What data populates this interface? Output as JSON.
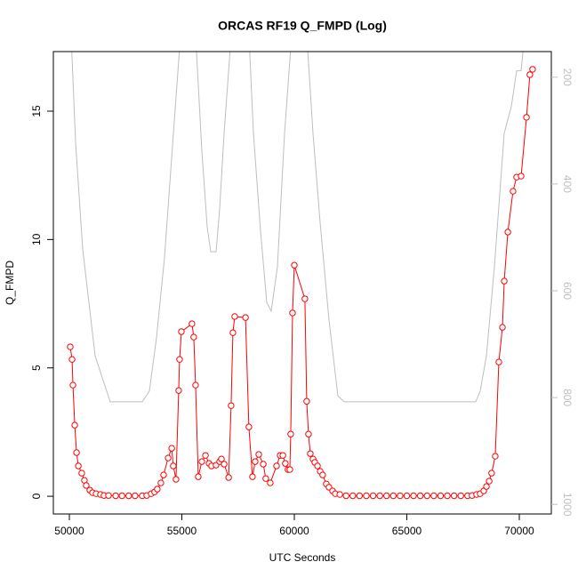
{
  "chart_data": {
    "type": "line",
    "title": "ORCAS RF19 Q_FMPD (Log)",
    "xlabel": "UTC Seconds",
    "ylabel": "Q_FMPD",
    "xlim": [
      49289,
      71423
    ],
    "xticks": [
      50000,
      55000,
      60000,
      65000,
      70000
    ],
    "ylim": [
      -0.69,
      17.32
    ],
    "yticks": [
      0,
      5,
      10,
      15
    ],
    "y2lim": [
      1018,
      152
    ],
    "y2ticks": [
      200,
      400,
      600,
      800,
      1000
    ],
    "grid": false,
    "series": [
      {
        "color": "#ff0000",
        "marker": "circle",
        "axis": "y",
        "x": [
          50040,
          50120,
          50160,
          50240,
          50320,
          50400,
          50550,
          50670,
          50750,
          50910,
          51030,
          51190,
          51380,
          51540,
          51740,
          52060,
          52340,
          52640,
          52920,
          53240,
          53440,
          53640,
          53790,
          53910,
          54070,
          54190,
          54390,
          54550,
          54620,
          54740,
          54860,
          54900,
          54980,
          55450,
          55530,
          55610,
          55730,
          55890,
          56050,
          56210,
          56320,
          56520,
          56680,
          56760,
          56880,
          57080,
          57190,
          57270,
          57350,
          57830,
          57980,
          58140,
          58260,
          58420,
          58620,
          58730,
          58930,
          59210,
          59370,
          59490,
          59600,
          59720,
          59800,
          59840,
          59920,
          60000,
          60470,
          60550,
          60630,
          60710,
          60830,
          60910,
          61030,
          61150,
          61260,
          61420,
          61540,
          61700,
          61820,
          62020,
          62300,
          62600,
          62900,
          63200,
          63500,
          63800,
          64100,
          64400,
          64700,
          65000,
          65300,
          65600,
          65900,
          66200,
          66500,
          66800,
          67100,
          67400,
          67700,
          67900,
          68100,
          68260,
          68420,
          68540,
          68660,
          68770,
          68930,
          69090,
          69250,
          69330,
          69490,
          69720,
          69880,
          70080,
          70320,
          70470,
          70590
        ],
        "values": [
          5.82,
          5.33,
          4.33,
          2.77,
          1.7,
          1.18,
          0.9,
          0.62,
          0.42,
          0.24,
          0.14,
          0.1,
          0.07,
          0.03,
          0.03,
          0.02,
          0.02,
          0.02,
          0.02,
          0.02,
          0.03,
          0.1,
          0.17,
          0.28,
          0.52,
          0.83,
          1.49,
          1.87,
          1.18,
          0.66,
          4.12,
          5.33,
          6.41,
          6.72,
          6.2,
          4.33,
          0.76,
          1.35,
          1.59,
          1.28,
          1.18,
          1.21,
          1.35,
          1.45,
          1.25,
          0.73,
          3.53,
          6.37,
          7.0,
          6.96,
          2.7,
          0.76,
          1.35,
          1.63,
          1.25,
          0.69,
          0.52,
          1.18,
          1.59,
          1.59,
          1.28,
          1.04,
          1.04,
          2.42,
          7.14,
          9.0,
          7.69,
          3.7,
          2.42,
          1.66,
          1.45,
          1.32,
          1.18,
          0.97,
          0.83,
          0.48,
          0.35,
          0.21,
          0.1,
          0.07,
          0.02,
          0.02,
          0.02,
          0.02,
          0.02,
          0.02,
          0.02,
          0.02,
          0.02,
          0.02,
          0.02,
          0.02,
          0.02,
          0.02,
          0.02,
          0.02,
          0.02,
          0.02,
          0.02,
          0.03,
          0.07,
          0.1,
          0.21,
          0.38,
          0.59,
          0.9,
          1.56,
          5.23,
          6.58,
          8.38,
          10.29,
          11.88,
          12.43,
          12.47,
          14.76,
          16.42,
          16.63
        ]
      },
      {
        "color": "#bebebe",
        "marker": "none",
        "axis": "y2",
        "x": [
          50079,
          50277,
          50593,
          51146,
          51660,
          51818,
          53241,
          53557,
          53874,
          54229,
          54625,
          54941,
          55613,
          55889,
          56126,
          56285,
          56522,
          56680,
          56877,
          57194,
          57984,
          58182,
          58498,
          58775,
          58972,
          59249,
          59565,
          59881,
          60553,
          60830,
          61146,
          61542,
          61937,
          62213,
          68063,
          68261,
          68538,
          68893,
          69328,
          69644,
          69881,
          70079,
          70237
        ],
        "values": [
          122,
          322,
          522,
          722,
          788,
          808,
          808,
          788,
          688,
          538,
          305,
          122,
          122,
          338,
          480,
          527,
          527,
          447,
          305,
          122,
          122,
          305,
          488,
          622,
          638,
          555,
          305,
          122,
          122,
          305,
          472,
          655,
          797,
          808,
          808,
          788,
          722,
          555,
          305,
          255,
          188,
          188,
          122
        ]
      }
    ]
  }
}
